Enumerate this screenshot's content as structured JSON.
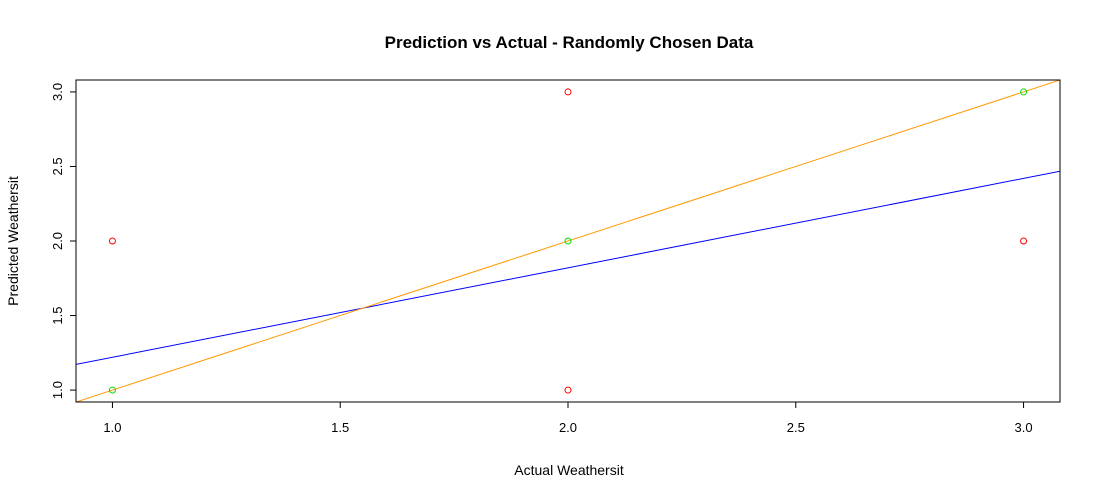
{
  "chart_data": {
    "type": "scatter",
    "title": "Prediction vs Actual - Randomly Chosen Data",
    "xlabel": "Actual Weathersit",
    "ylabel": "Predicted Weathersit",
    "xlim": [
      0.92,
      3.08
    ],
    "ylim": [
      0.92,
      3.08
    ],
    "x_ticks": [
      1.0,
      1.5,
      2.0,
      2.5,
      3.0
    ],
    "x_tick_labels": [
      "1.0",
      "1.5",
      "2.0",
      "2.5",
      "3.0"
    ],
    "y_ticks": [
      1.0,
      1.5,
      2.0,
      2.5,
      3.0
    ],
    "y_tick_labels": [
      "1.0",
      "1.5",
      "2.0",
      "2.5",
      "3.0"
    ],
    "grid": false,
    "series": [
      {
        "marker": "open-circle",
        "color": "#ff0000",
        "points": [
          {
            "x": 1,
            "y": 2
          },
          {
            "x": 2,
            "y": 3
          },
          {
            "x": 2,
            "y": 1
          },
          {
            "x": 3,
            "y": 2
          }
        ]
      },
      {
        "marker": "open-circle",
        "color": "#00dd00",
        "points": [
          {
            "x": 1,
            "y": 1
          },
          {
            "x": 2,
            "y": 2
          },
          {
            "x": 3,
            "y": 3
          }
        ]
      }
    ],
    "lines": [
      {
        "color": "#0000ff",
        "intercept": 0.62,
        "slope": 0.6
      },
      {
        "color": "#ff9900",
        "intercept": 0,
        "slope": 1
      }
    ]
  }
}
